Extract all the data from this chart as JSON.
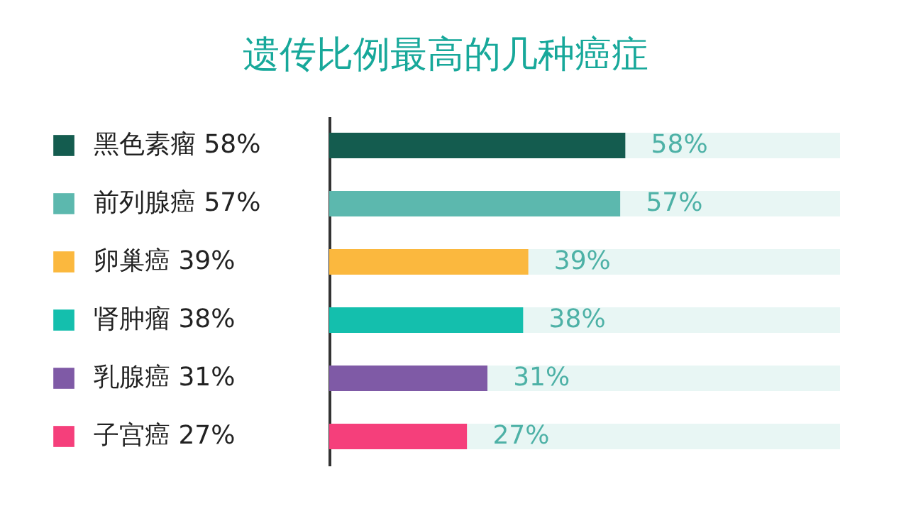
{
  "chart_data": {
    "type": "bar",
    "orientation": "horizontal",
    "stacked": true,
    "title": "遗传比例最高的几种癌症",
    "categories": [
      "黑色素瘤",
      "前列腺癌",
      "卵巢癌",
      "肾肿瘤",
      "乳腺癌",
      "子宫癌"
    ],
    "series": [
      {
        "colors": [
          "#145c4f",
          "#5cb8ae",
          "#fbb83e",
          "#14bfad",
          "#7f5aa6",
          "#f53f7b"
        ],
        "values": [
          58,
          57,
          39,
          38,
          31,
          27
        ],
        "value_labels": [
          "58%",
          "57%",
          "39%",
          "38%",
          "31%",
          "27%"
        ]
      },
      {
        "color": "#e8f6f4",
        "values": [
          42,
          43,
          61,
          62,
          69,
          73
        ]
      }
    ],
    "xlim": [
      0,
      100
    ],
    "tick_labels": "y"
  }
}
